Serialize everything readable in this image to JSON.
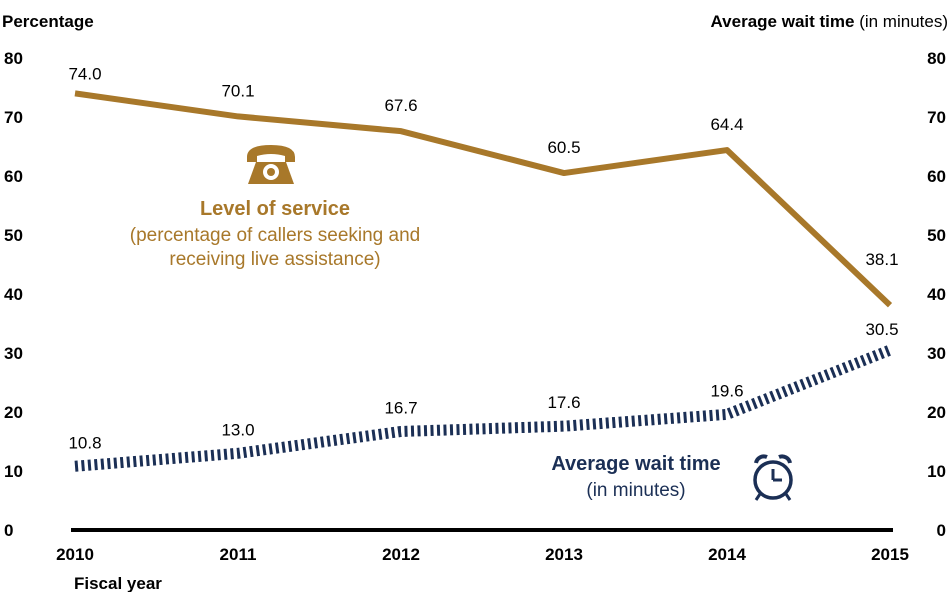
{
  "chart_data": {
    "type": "line",
    "xlabel": "Fiscal year",
    "y_left_label": "Percentage",
    "y_right_label_bold": "Average wait time",
    "y_right_label_normal": " (in minutes)",
    "ylim": [
      0,
      80
    ],
    "yticks": [
      0,
      10,
      20,
      30,
      40,
      50,
      60,
      70,
      80
    ],
    "categories": [
      "2010",
      "2011",
      "2012",
      "2013",
      "2014",
      "2015"
    ],
    "series": [
      {
        "name": "Level of service",
        "style": "solid",
        "color": "#a8782a",
        "values": [
          74.0,
          70.1,
          67.6,
          60.5,
          64.4,
          38.1
        ],
        "labels": [
          "74.0",
          "70.1",
          "67.6",
          "60.5",
          "64.4",
          "38.1"
        ]
      },
      {
        "name": "Average wait time",
        "style": "dotted",
        "color": "#1b2f55",
        "values": [
          10.8,
          13.0,
          16.7,
          17.6,
          19.6,
          30.5
        ],
        "labels": [
          "10.8",
          "13.0",
          "16.7",
          "17.6",
          "19.6",
          "30.5"
        ]
      }
    ],
    "annotations": {
      "service_title": "Level of service",
      "service_sub1": "(percentage of callers seeking and",
      "service_sub2": "receiving live assistance)",
      "wait_title": "Average wait time",
      "wait_sub": "(in minutes)",
      "service_icon": "telephone-icon",
      "wait_icon": "alarm-clock-icon"
    }
  }
}
